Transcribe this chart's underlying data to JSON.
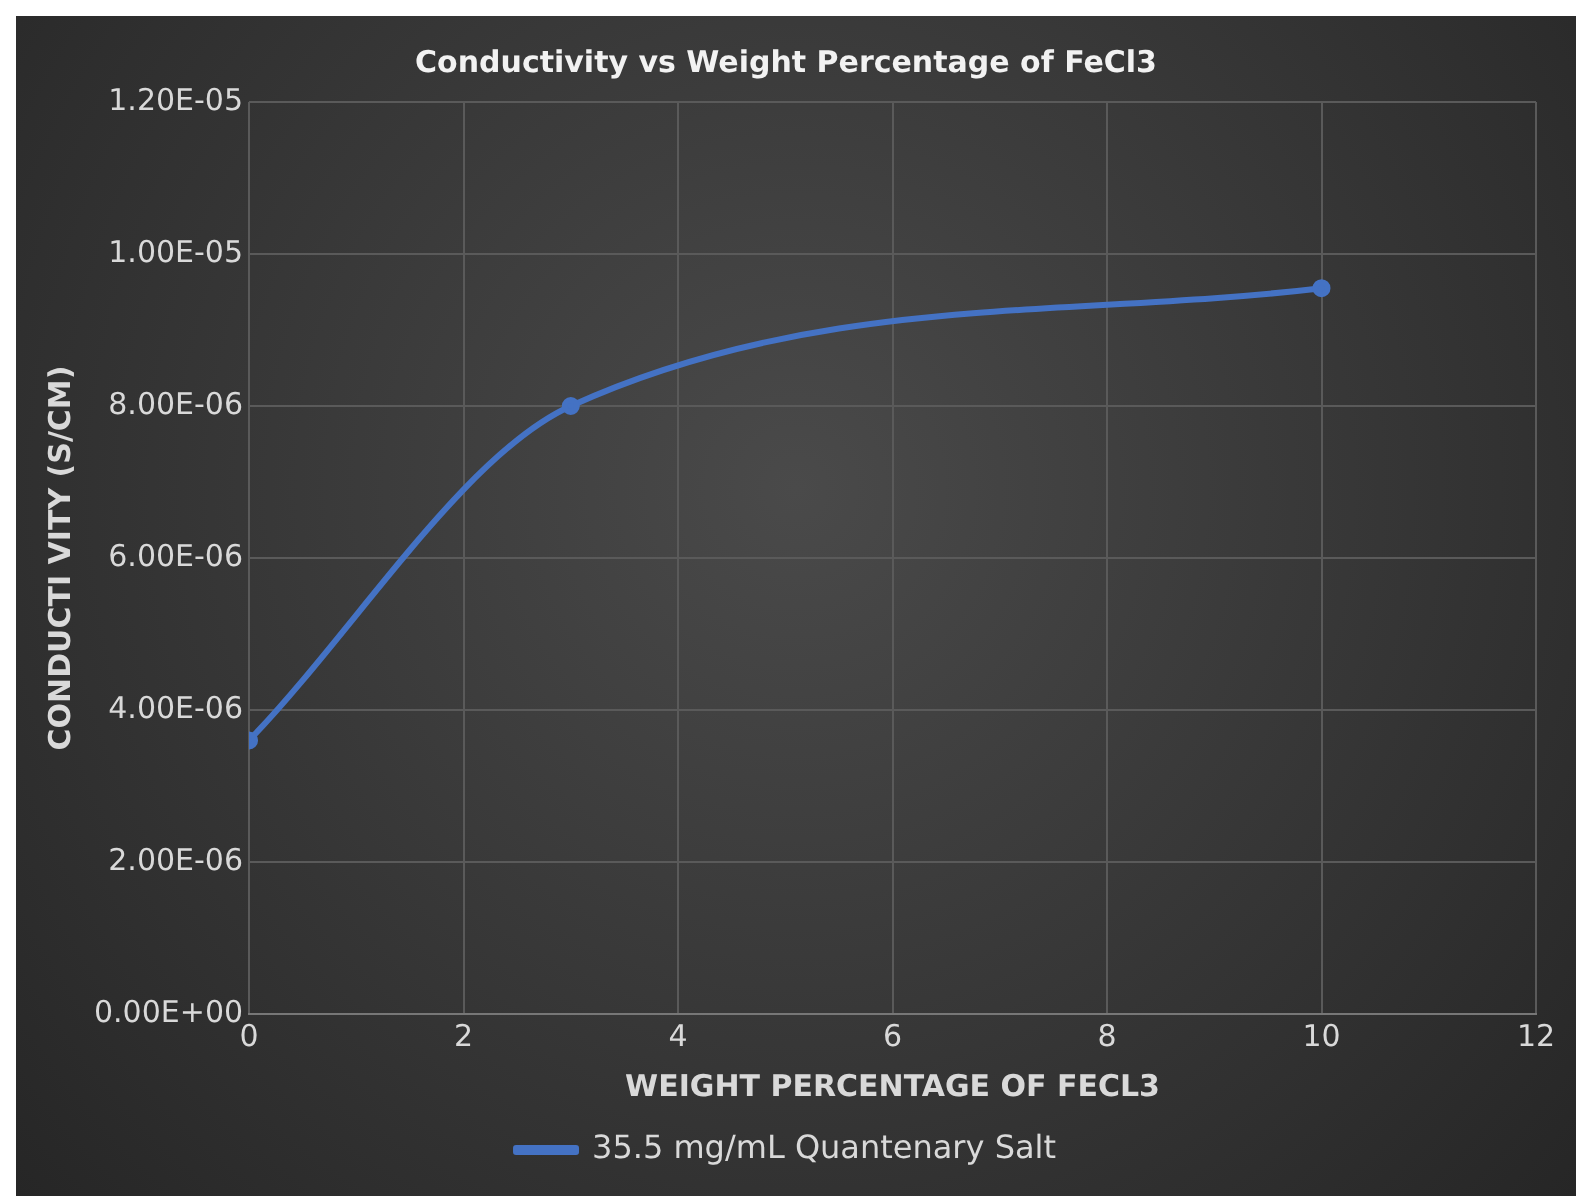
{
  "chart_data": {
    "type": "line",
    "title": "Conductivity vs Weight Percentage of FeCl3",
    "xlabel": "WEIGHT PERCENTAGE OF FECL3",
    "ylabel": "CONDUCTI VITY (S/CM)",
    "x": [
      0,
      3,
      10
    ],
    "series": [
      {
        "name": "35.5 mg/mL Quantenary Salt",
        "color": "#4472c4",
        "values": [
          3.6e-06,
          8e-06,
          9.55e-06
        ]
      }
    ],
    "xlim": [
      0,
      12
    ],
    "xticks": [
      0,
      2,
      4,
      6,
      8,
      10,
      12
    ],
    "ylim": [
      0,
      1.2e-05
    ],
    "yticks": [
      {
        "value": 0,
        "label": "0.00E+00"
      },
      {
        "value": 2e-06,
        "label": "2.00E-06"
      },
      {
        "value": 4e-06,
        "label": "4.00E-06"
      },
      {
        "value": 6e-06,
        "label": "6.00E-06"
      },
      {
        "value": 8e-06,
        "label": "8.00E-06"
      },
      {
        "value": 1e-05,
        "label": "1.00E-05"
      },
      {
        "value": 1.2e-05,
        "label": "1.20E-05"
      }
    ],
    "grid": true,
    "legend": "bottom",
    "marker": "circle",
    "line_style": "solid"
  }
}
